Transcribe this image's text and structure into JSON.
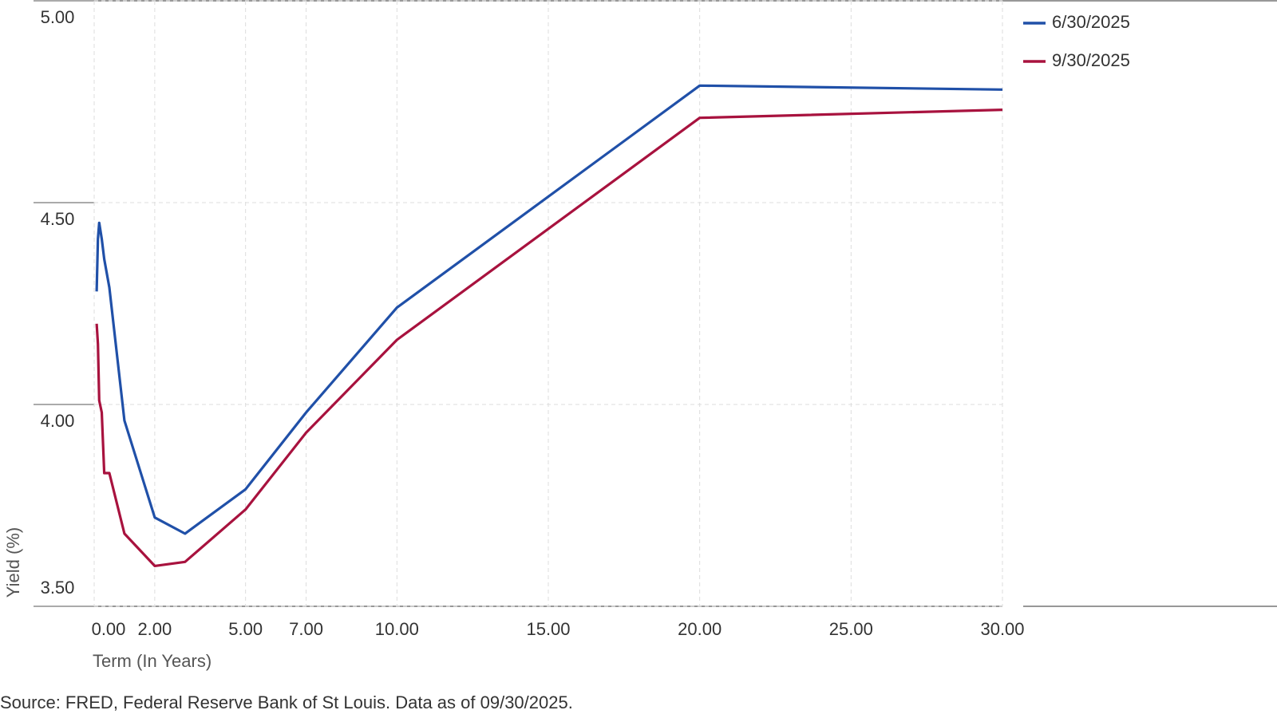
{
  "chart_data": {
    "type": "line",
    "x": [
      0.083,
      0.125,
      0.167,
      0.25,
      0.333,
      0.5,
      1,
      2,
      3,
      5,
      7,
      10,
      20,
      30
    ],
    "series": [
      {
        "name": "6/30/2025",
        "color": "#2050a8",
        "values": [
          4.28,
          4.41,
          4.45,
          4.41,
          4.36,
          4.29,
          3.96,
          3.72,
          3.68,
          3.79,
          3.98,
          4.24,
          4.79,
          4.78
        ]
      },
      {
        "name": "9/30/2025",
        "color": "#a8123e",
        "values": [
          4.2,
          4.15,
          4.01,
          3.98,
          3.83,
          3.83,
          3.68,
          3.6,
          3.61,
          3.74,
          3.93,
          4.16,
          4.71,
          4.73
        ]
      }
    ],
    "xlim": [
      0,
      30
    ],
    "ylim": [
      3.5,
      5.0
    ],
    "xticks": [
      {
        "value": 0,
        "label": "0.00"
      },
      {
        "value": 2,
        "label": "2.00"
      },
      {
        "value": 5,
        "label": "5.00"
      },
      {
        "value": 7,
        "label": "7.00"
      },
      {
        "value": 10,
        "label": "10.00"
      },
      {
        "value": 15,
        "label": "15.00"
      },
      {
        "value": 20,
        "label": "20.00"
      },
      {
        "value": 25,
        "label": "25.00"
      },
      {
        "value": 30,
        "label": "30.00"
      }
    ],
    "yticks": [
      {
        "value": 3.5,
        "label": "3.50"
      },
      {
        "value": 4.0,
        "label": "4.00"
      },
      {
        "value": 4.5,
        "label": "4.50"
      },
      {
        "value": 5.0,
        "label": "5.00"
      }
    ],
    "xlabel": "Term (In Years)",
    "ylabel": "Yield (%)",
    "source": "Source: FRED, Federal Reserve Bank of St Louis. Data as of 09/30/2025.",
    "grid": true,
    "legend": "top-right"
  }
}
